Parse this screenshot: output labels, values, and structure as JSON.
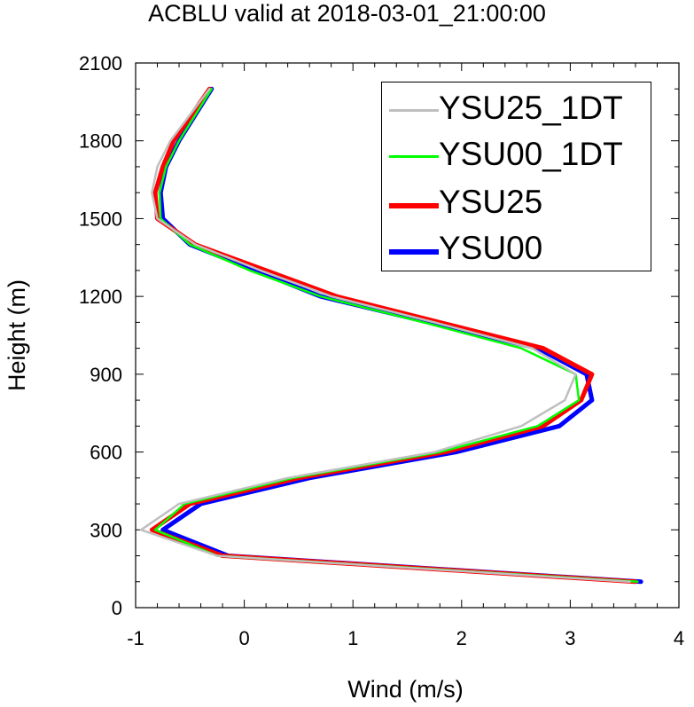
{
  "title": "ACBLU valid at 2018-03-01_21:00:00",
  "chart_data": {
    "type": "line",
    "title": "ACBLU valid at 2018-03-01_21:00:00",
    "xlabel": "Wind (m/s)",
    "ylabel": "Height (m)",
    "xlim": [
      -1,
      4
    ],
    "ylim": [
      0,
      2100
    ],
    "x_ticks": [
      "-1",
      "0",
      "1",
      "2",
      "3",
      "4"
    ],
    "y_ticks": [
      "0",
      "300",
      "600",
      "900",
      "1200",
      "1500",
      "1800",
      "2100"
    ],
    "grid": false,
    "legend_position": "top-right",
    "series": [
      {
        "name": "YSU00",
        "color": "#0000ff",
        "x": [
          3.65,
          -0.15,
          -0.75,
          -0.4,
          0.6,
          1.95,
          2.9,
          3.2,
          3.15,
          2.7,
          1.7,
          0.7,
          0.1,
          -0.5,
          -0.75,
          -0.77,
          -0.72,
          -0.6,
          -0.3
        ],
        "y": [
          100,
          200,
          300,
          400,
          500,
          600,
          700,
          800,
          900,
          1000,
          1100,
          1200,
          1300,
          1400,
          1500,
          1600,
          1700,
          1800,
          2000
        ]
      },
      {
        "name": "YSU25",
        "color": "#ff0000",
        "x": [
          3.6,
          -0.2,
          -0.85,
          -0.5,
          0.5,
          1.85,
          2.75,
          3.1,
          3.2,
          2.75,
          1.8,
          0.85,
          0.2,
          -0.45,
          -0.8,
          -0.82,
          -0.75,
          -0.65,
          -0.32
        ],
        "y": [
          100,
          200,
          300,
          400,
          500,
          600,
          700,
          800,
          900,
          1000,
          1100,
          1200,
          1300,
          1400,
          1500,
          1600,
          1700,
          1800,
          2000
        ]
      },
      {
        "name": "YSU00_1DT",
        "color": "#00ff00",
        "x": [
          3.62,
          -0.25,
          -0.82,
          -0.55,
          0.45,
          1.8,
          2.7,
          3.08,
          3.05,
          2.55,
          1.65,
          0.7,
          0.05,
          -0.5,
          -0.77,
          -0.78,
          -0.72,
          -0.6,
          -0.3
        ],
        "y": [
          100,
          200,
          300,
          400,
          500,
          600,
          700,
          800,
          900,
          1000,
          1100,
          1200,
          1300,
          1400,
          1500,
          1600,
          1700,
          1800,
          2000
        ]
      },
      {
        "name": "YSU25_1DT",
        "color": "#bfbfbf",
        "x": [
          3.55,
          -0.25,
          -0.95,
          -0.6,
          0.4,
          1.75,
          2.55,
          2.95,
          3.05,
          2.65,
          1.75,
          0.8,
          0.15,
          -0.45,
          -0.8,
          -0.85,
          -0.8,
          -0.68,
          -0.32
        ],
        "y": [
          100,
          200,
          300,
          400,
          500,
          600,
          700,
          800,
          900,
          1000,
          1100,
          1200,
          1300,
          1400,
          1500,
          1600,
          1700,
          1800,
          2000
        ]
      }
    ],
    "legend": [
      {
        "name": "YSU25_1DT",
        "color": "#bfbfbf"
      },
      {
        "name": "YSU00_1DT",
        "color": "#00ff00"
      },
      {
        "name": "YSU25",
        "color": "#ff0000"
      },
      {
        "name": "YSU00",
        "color": "#0000ff"
      }
    ]
  }
}
